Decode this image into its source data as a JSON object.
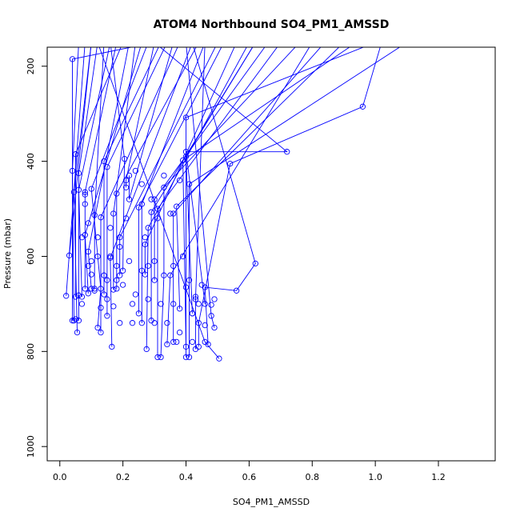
{
  "chart_data": {
    "type": "line",
    "title": "ATOM4 Northbound SO4_PM1_AMSSD",
    "xlabel": "SO4_PM1_AMSSD",
    "ylabel": "Pressure (mbar)",
    "xlim": [
      -0.04,
      1.38
    ],
    "ylim": [
      1030,
      160
    ],
    "y_reversed": true,
    "x_ticks": [
      0.0,
      0.2,
      0.4,
      0.6,
      0.8,
      1.0,
      1.2
    ],
    "x_tick_labels": [
      "0.0",
      "0.2",
      "0.4",
      "0.6",
      "0.8",
      "1.0",
      "1.2"
    ],
    "y_ticks": [
      200,
      400,
      600,
      800,
      1000
    ],
    "y_tick_labels": [
      "200",
      "400",
      "600",
      "800",
      "1000"
    ],
    "series_color": "#0000ff",
    "grid": false,
    "legend": "none",
    "series": [
      {
        "points": [
          [
            0.02,
            683
          ],
          [
            0.08,
            150
          ]
        ]
      },
      {
        "points": [
          [
            0.03,
            598
          ],
          [
            0.1,
            150
          ]
        ]
      },
      {
        "points": [
          [
            0.04,
            735
          ],
          [
            0.04,
            185
          ],
          [
            0.3,
            150
          ]
        ]
      },
      {
        "points": [
          [
            0.045,
            735
          ],
          [
            0.04,
            420
          ],
          [
            0.06,
            150
          ]
        ]
      },
      {
        "points": [
          [
            0.05,
            685
          ],
          [
            0.05,
            385
          ],
          [
            0.2,
            150
          ]
        ]
      },
      {
        "points": [
          [
            0.055,
            760
          ],
          [
            0.045,
            465
          ],
          [
            0.1,
            150
          ]
        ]
      },
      {
        "points": [
          [
            0.06,
            735
          ],
          [
            0.06,
            425
          ],
          [
            0.12,
            150
          ]
        ]
      },
      {
        "points": [
          [
            0.07,
            685
          ],
          [
            0.06,
            460
          ],
          [
            0.16,
            150
          ]
        ]
      },
      {
        "points": [
          [
            0.08,
            668
          ],
          [
            0.08,
            465
          ],
          [
            0.18,
            150
          ]
        ]
      },
      {
        "points": [
          [
            0.09,
            678
          ],
          [
            0.08,
            555
          ],
          [
            0.26,
            150
          ]
        ]
      },
      {
        "points": [
          [
            0.1,
            668
          ],
          [
            0.09,
            590
          ],
          [
            0.22,
            150
          ]
        ]
      },
      {
        "points": [
          [
            0.11,
            668
          ],
          [
            0.11,
            513
          ],
          [
            0.14,
            150
          ]
        ]
      },
      {
        "points": [
          [
            0.12,
            750
          ],
          [
            0.13,
            668
          ],
          [
            0.1,
            458
          ],
          [
            0.28,
            150
          ]
        ]
      },
      {
        "points": [
          [
            0.13,
            760
          ],
          [
            0.13,
            518
          ],
          [
            0.38,
            150
          ]
        ]
      },
      {
        "points": [
          [
            0.14,
            680
          ],
          [
            0.14,
            400
          ],
          [
            0.32,
            150
          ]
        ]
      },
      {
        "points": [
          [
            0.15,
            725
          ],
          [
            0.15,
            412
          ],
          [
            0.34,
            150
          ]
        ]
      },
      {
        "points": [
          [
            0.165,
            790
          ],
          [
            0.16,
            603
          ],
          [
            0.42,
            150
          ]
        ]
      },
      {
        "points": [
          [
            0.17,
            670
          ],
          [
            0.17,
            510
          ],
          [
            0.24,
            150
          ]
        ]
      },
      {
        "points": [
          [
            0.18,
            668
          ],
          [
            0.18,
            468
          ],
          [
            0.44,
            150
          ]
        ]
      },
      {
        "points": [
          [
            0.19,
            640
          ],
          [
            0.19,
            560
          ],
          [
            0.5,
            150
          ]
        ]
      },
      {
        "points": [
          [
            0.2,
            630
          ],
          [
            0.205,
            395
          ],
          [
            0.16,
            150
          ]
        ]
      },
      {
        "points": [
          [
            0.21,
            455
          ],
          [
            0.21,
            440
          ],
          [
            0.3,
            150
          ]
        ]
      },
      {
        "points": [
          [
            0.22,
            430
          ],
          [
            0.22,
            480
          ],
          [
            0.36,
            150
          ]
        ]
      },
      {
        "points": [
          [
            0.25,
            720
          ],
          [
            0.25,
            497
          ],
          [
            0.52,
            150
          ]
        ]
      },
      {
        "points": [
          [
            0.26,
            740
          ],
          [
            0.26,
            490
          ],
          [
            0.46,
            150
          ]
        ]
      },
      {
        "points": [
          [
            0.27,
            638
          ],
          [
            0.27,
            575
          ],
          [
            0.56,
            150
          ]
        ]
      },
      {
        "points": [
          [
            0.275,
            795
          ],
          [
            0.28,
            540
          ],
          [
            0.6,
            150
          ]
        ]
      },
      {
        "points": [
          [
            0.29,
            735
          ],
          [
            0.29,
            507
          ],
          [
            0.62,
            150
          ]
        ]
      },
      {
        "points": [
          [
            0.3,
            650
          ],
          [
            0.3,
            480
          ],
          [
            0.66,
            150
          ]
        ]
      },
      {
        "points": [
          [
            0.31,
            812
          ],
          [
            0.31,
            500
          ],
          [
            0.7,
            150
          ]
        ]
      },
      {
        "points": [
          [
            0.32,
            812
          ],
          [
            0.33,
            640
          ],
          [
            0.33,
            455
          ],
          [
            0.76,
            150
          ]
        ]
      },
      {
        "points": [
          [
            0.34,
            785
          ],
          [
            0.35,
            640
          ],
          [
            0.8,
            150
          ]
        ]
      },
      {
        "points": [
          [
            0.36,
            780
          ],
          [
            0.36,
            510
          ],
          [
            0.84,
            150
          ]
        ]
      },
      {
        "points": [
          [
            0.38,
            710
          ],
          [
            0.37,
            495
          ],
          [
            0.9,
            150
          ]
        ]
      },
      {
        "points": [
          [
            0.4,
            790
          ],
          [
            0.39,
            398
          ],
          [
            0.94,
            150
          ]
        ]
      },
      {
        "points": [
          [
            0.4,
            812
          ],
          [
            0.4,
            308
          ],
          [
            1.0,
            150
          ]
        ]
      },
      {
        "points": [
          [
            0.41,
            812
          ],
          [
            0.41,
            448
          ],
          [
            1.1,
            150
          ]
        ]
      },
      {
        "points": [
          [
            0.42,
            720
          ],
          [
            0.4,
            390
          ],
          [
            0.62,
            150
          ]
        ]
      },
      {
        "points": [
          [
            0.43,
            795
          ],
          [
            0.43,
            690
          ],
          [
            0.46,
            150
          ]
        ]
      },
      {
        "points": [
          [
            0.44,
            790
          ],
          [
            0.44,
            740
          ],
          [
            0.54,
            405
          ],
          [
            0.96,
            285
          ],
          [
            1.02,
            150
          ]
        ]
      },
      {
        "points": [
          [
            0.46,
            700
          ],
          [
            0.4,
            380
          ],
          [
            0.72,
            380
          ],
          [
            0.3,
            150
          ]
        ]
      },
      {
        "points": [
          [
            0.47,
            785
          ],
          [
            0.46,
            665
          ],
          [
            0.56,
            672
          ],
          [
            0.62,
            615
          ],
          [
            0.42,
            150
          ]
        ]
      },
      {
        "points": [
          [
            0.49,
            750
          ],
          [
            0.48,
            725
          ],
          [
            0.4,
            150
          ]
        ]
      },
      {
        "points": [
          [
            0.505,
            815
          ],
          [
            0.46,
            780
          ],
          [
            0.12,
            150
          ]
        ]
      }
    ],
    "loose_points": [
      [
        0.05,
        732
      ],
      [
        0.06,
        682
      ],
      [
        0.07,
        700
      ],
      [
        0.08,
        490
      ],
      [
        0.09,
        530
      ],
      [
        0.1,
        638
      ],
      [
        0.11,
        672
      ],
      [
        0.13,
        708
      ],
      [
        0.15,
        690
      ],
      [
        0.16,
        600
      ],
      [
        0.17,
        705
      ],
      [
        0.18,
        620
      ],
      [
        0.19,
        580
      ],
      [
        0.2,
        660
      ],
      [
        0.21,
        520
      ],
      [
        0.23,
        700
      ],
      [
        0.24,
        420
      ],
      [
        0.26,
        448
      ],
      [
        0.27,
        560
      ],
      [
        0.28,
        620
      ],
      [
        0.29,
        480
      ],
      [
        0.31,
        520
      ],
      [
        0.33,
        430
      ],
      [
        0.35,
        510
      ],
      [
        0.36,
        700
      ],
      [
        0.37,
        780
      ],
      [
        0.38,
        440
      ],
      [
        0.39,
        600
      ],
      [
        0.41,
        650
      ],
      [
        0.42,
        720
      ],
      [
        0.43,
        685
      ],
      [
        0.45,
        660
      ],
      [
        0.46,
        745
      ],
      [
        0.48,
        702
      ],
      [
        0.49,
        690
      ],
      [
        0.08,
        470
      ],
      [
        0.1,
        610
      ],
      [
        0.12,
        560
      ],
      [
        0.14,
        640
      ],
      [
        0.16,
        540
      ],
      [
        0.18,
        650
      ],
      [
        0.22,
        610
      ],
      [
        0.24,
        680
      ],
      [
        0.26,
        630
      ],
      [
        0.28,
        690
      ],
      [
        0.3,
        610
      ],
      [
        0.32,
        700
      ],
      [
        0.34,
        740
      ],
      [
        0.36,
        620
      ],
      [
        0.38,
        760
      ],
      [
        0.4,
        665
      ],
      [
        0.42,
        780
      ],
      [
        0.44,
        700
      ],
      [
        0.3,
        740
      ],
      [
        0.23,
        740
      ],
      [
        0.19,
        740
      ],
      [
        0.15,
        650
      ],
      [
        0.12,
        600
      ],
      [
        0.09,
        620
      ],
      [
        0.07,
        560
      ]
    ]
  }
}
